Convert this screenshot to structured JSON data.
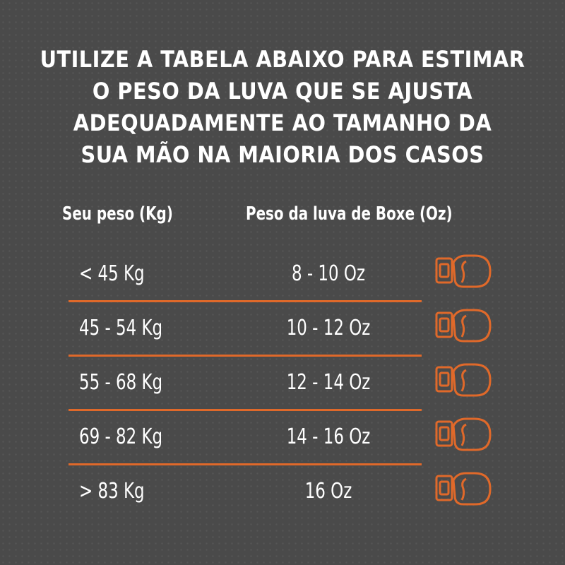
{
  "header": {
    "title_lines": [
      "UTILIZE A TABELA ABAIXO PARA ESTIMAR",
      "O PESO DA LUVA QUE SE AJUSTA",
      "ADEQUADAMENTE AO TAMANHO DA",
      "SUA MÃO NA MAIORIA DOS CASOS"
    ]
  },
  "table": {
    "columns": [
      "Seu peso (Kg)",
      "Peso da luva de Boxe (Oz)"
    ],
    "rows": [
      [
        "< 45 Kg",
        "8 - 10 Oz"
      ],
      [
        "45 - 54 Kg",
        "10 - 12 Oz"
      ],
      [
        "55 - 68 Kg",
        "12 - 14 Oz"
      ],
      [
        "69 - 82 Kg",
        "14 - 16 Oz"
      ],
      [
        "> 83 Kg",
        "16 Oz"
      ]
    ]
  }
}
